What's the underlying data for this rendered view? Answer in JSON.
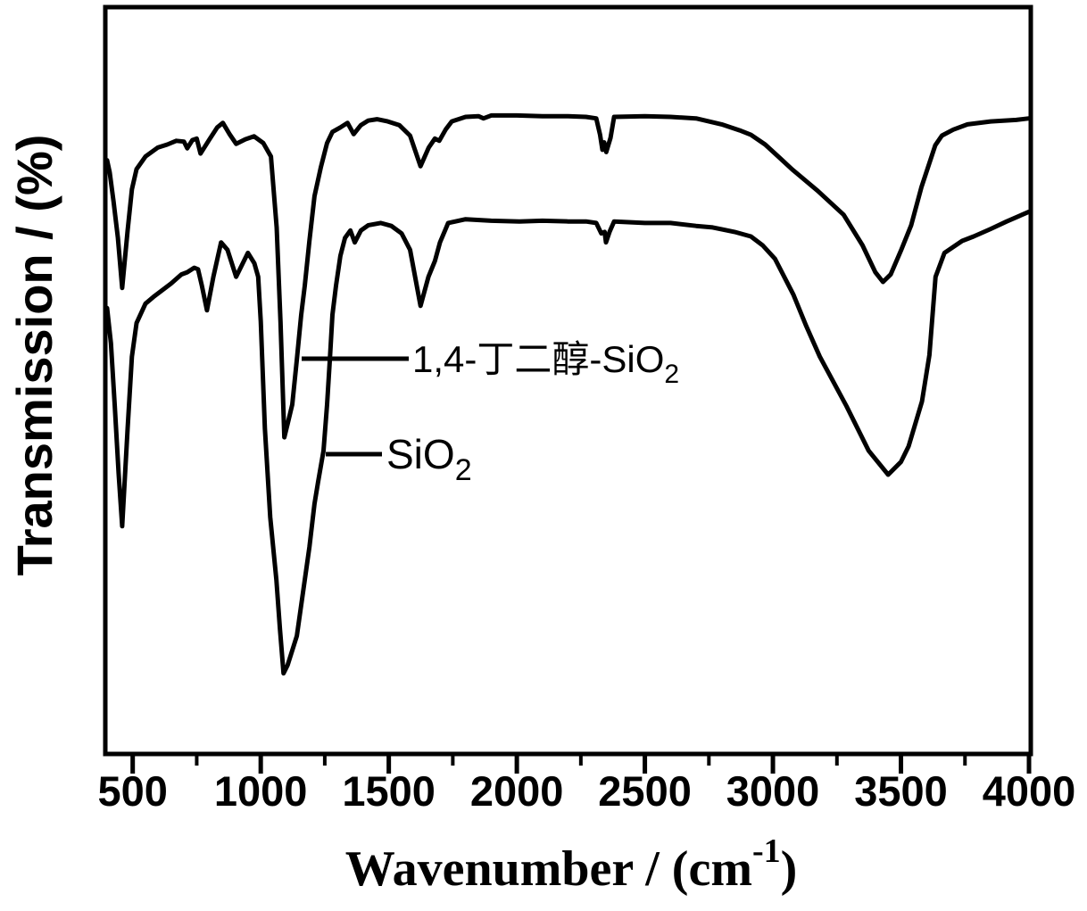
{
  "page": {
    "background": "#ffffff"
  },
  "figure": {
    "ink_color": "#000000",
    "frame_box": true
  },
  "chart_data": {
    "type": "line",
    "title": "",
    "xlabel": {
      "prefix": "Wavenumber / (cm",
      "superscript": "-1",
      "suffix": ")"
    },
    "xlabel_plain": "Wavenumber / (cm-1)",
    "ylabel": "Transmission / (%)",
    "x_axis": {
      "min": 400,
      "max": 4000,
      "major_ticks": [
        500,
        1000,
        1500,
        2000,
        2500,
        3000,
        3500,
        4000
      ],
      "major_tick_labels": [
        "500",
        "1000",
        "1500",
        "2000",
        "2500",
        "3000",
        "3500",
        "4000"
      ],
      "minor_ticks": [
        750,
        1250,
        1750,
        2250,
        2750,
        3250,
        3750
      ]
    },
    "y_axis": {
      "label": "Transmission / (%)",
      "numeric_ticks_shown": false,
      "range_arbitrary_units": [
        0,
        100
      ]
    },
    "grid": false,
    "legend_style": "inline annotations with leader lines",
    "annotations": [
      {
        "full_text": "1,4-丁二醇-SiO2",
        "label_main": "1,4-丁二醇-SiO",
        "label_sub": "2",
        "target_series_index": 0
      },
      {
        "full_text": "SiO2",
        "label_main": "SiO",
        "label_sub": "2",
        "target_series_index": 1
      }
    ],
    "series": [
      {
        "name": "1,4-丁二醇-SiO2",
        "color": "#000000",
        "points": [
          [
            400,
            79.5
          ],
          [
            410,
            77.9
          ],
          [
            425,
            74.0
          ],
          [
            442,
            69.1
          ],
          [
            459,
            62.4
          ],
          [
            480,
            70.1
          ],
          [
            497,
            75.6
          ],
          [
            515,
            78.3
          ],
          [
            550,
            80.0
          ],
          [
            598,
            81.2
          ],
          [
            635,
            81.6
          ],
          [
            670,
            82.1
          ],
          [
            700,
            82.0
          ],
          [
            713,
            81.1
          ],
          [
            733,
            82.2
          ],
          [
            750,
            82.4
          ],
          [
            765,
            80.4
          ],
          [
            800,
            82.3
          ],
          [
            830,
            83.9
          ],
          [
            852,
            84.5
          ],
          [
            878,
            83.0
          ],
          [
            904,
            81.7
          ],
          [
            940,
            82.3
          ],
          [
            974,
            82.7
          ],
          [
            1010,
            81.8
          ],
          [
            1040,
            80.0
          ],
          [
            1062,
            70.5
          ],
          [
            1077,
            57.9
          ],
          [
            1092,
            42.4
          ],
          [
            1105,
            44.2
          ],
          [
            1123,
            46.8
          ],
          [
            1141,
            52.8
          ],
          [
            1158,
            58.8
          ],
          [
            1172,
            62.7
          ],
          [
            1190,
            68.7
          ],
          [
            1210,
            74.7
          ],
          [
            1235,
            78.6
          ],
          [
            1259,
            81.8
          ],
          [
            1280,
            83.3
          ],
          [
            1311,
            83.9
          ],
          [
            1339,
            84.5
          ],
          [
            1363,
            83.0
          ],
          [
            1391,
            84.2
          ],
          [
            1419,
            84.8
          ],
          [
            1454,
            85.0
          ],
          [
            1496,
            84.7
          ],
          [
            1541,
            84.2
          ],
          [
            1583,
            82.8
          ],
          [
            1624,
            78.7
          ],
          [
            1656,
            81.2
          ],
          [
            1680,
            82.4
          ],
          [
            1697,
            82.1
          ],
          [
            1722,
            83.6
          ],
          [
            1746,
            84.7
          ],
          [
            1800,
            85.3
          ],
          [
            1850,
            85.4
          ],
          [
            1870,
            85.1
          ],
          [
            1900,
            85.5
          ],
          [
            2000,
            85.5
          ],
          [
            2100,
            85.4
          ],
          [
            2200,
            85.4
          ],
          [
            2270,
            85.3
          ],
          [
            2310,
            85.1
          ],
          [
            2325,
            82.9
          ],
          [
            2334,
            80.9
          ],
          [
            2341,
            81.9
          ],
          [
            2349,
            80.6
          ],
          [
            2366,
            82.5
          ],
          [
            2380,
            85.3
          ],
          [
            2500,
            85.4
          ],
          [
            2600,
            85.3
          ],
          [
            2700,
            85.1
          ],
          [
            2800,
            84.3
          ],
          [
            2870,
            83.5
          ],
          [
            2914,
            82.9
          ],
          [
            2970,
            81.6
          ],
          [
            3030,
            79.7
          ],
          [
            3074,
            78.3
          ],
          [
            3175,
            75.4
          ],
          [
            3276,
            72.2
          ],
          [
            3350,
            68.1
          ],
          [
            3400,
            64.5
          ],
          [
            3430,
            63.2
          ],
          [
            3460,
            64.2
          ],
          [
            3500,
            67.4
          ],
          [
            3540,
            70.8
          ],
          [
            3580,
            75.9
          ],
          [
            3634,
            81.5
          ],
          [
            3660,
            82.8
          ],
          [
            3704,
            83.6
          ],
          [
            3760,
            84.3
          ],
          [
            3850,
            84.7
          ],
          [
            3950,
            84.9
          ],
          [
            4000,
            85.1
          ]
        ]
      },
      {
        "name": "SiO2",
        "color": "#000000",
        "points": [
          [
            400,
            59.7
          ],
          [
            415,
            55.0
          ],
          [
            430,
            46.6
          ],
          [
            445,
            37.6
          ],
          [
            459,
            30.5
          ],
          [
            480,
            43.6
          ],
          [
            497,
            53.2
          ],
          [
            515,
            57.7
          ],
          [
            550,
            60.3
          ],
          [
            581,
            61.2
          ],
          [
            650,
            63.0
          ],
          [
            690,
            64.2
          ],
          [
            713,
            64.5
          ],
          [
            740,
            65.1
          ],
          [
            755,
            64.9
          ],
          [
            770,
            62.7
          ],
          [
            790,
            59.4
          ],
          [
            815,
            63.9
          ],
          [
            845,
            68.5
          ],
          [
            870,
            67.5
          ],
          [
            904,
            63.9
          ],
          [
            950,
            67.1
          ],
          [
            975,
            65.7
          ],
          [
            990,
            63.9
          ],
          [
            1000,
            57.9
          ],
          [
            1016,
            43.6
          ],
          [
            1037,
            31.7
          ],
          [
            1061,
            23.3
          ],
          [
            1075,
            16.7
          ],
          [
            1089,
            10.8
          ],
          [
            1105,
            11.9
          ],
          [
            1141,
            15.8
          ],
          [
            1190,
            27.7
          ],
          [
            1210,
            33.5
          ],
          [
            1224,
            36.4
          ],
          [
            1245,
            40.6
          ],
          [
            1259,
            46.8
          ],
          [
            1270,
            52.8
          ],
          [
            1280,
            58.8
          ],
          [
            1294,
            62.7
          ],
          [
            1311,
            66.7
          ],
          [
            1329,
            69.1
          ],
          [
            1350,
            70.1
          ],
          [
            1367,
            68.5
          ],
          [
            1391,
            70.1
          ],
          [
            1420,
            70.8
          ],
          [
            1468,
            71.1
          ],
          [
            1510,
            70.7
          ],
          [
            1550,
            69.7
          ],
          [
            1583,
            67.5
          ],
          [
            1624,
            60.0
          ],
          [
            1655,
            63.9
          ],
          [
            1680,
            66.0
          ],
          [
            1700,
            68.5
          ],
          [
            1732,
            71.1
          ],
          [
            1800,
            71.6
          ],
          [
            1900,
            71.4
          ],
          [
            2010,
            71.3
          ],
          [
            2100,
            71.4
          ],
          [
            2200,
            71.3
          ],
          [
            2270,
            71.3
          ],
          [
            2310,
            71.1
          ],
          [
            2330,
            69.7
          ],
          [
            2343,
            69.9
          ],
          [
            2348,
            68.5
          ],
          [
            2362,
            69.9
          ],
          [
            2380,
            71.3
          ],
          [
            2500,
            71.1
          ],
          [
            2600,
            71.1
          ],
          [
            2700,
            70.7
          ],
          [
            2765,
            70.5
          ],
          [
            2850,
            69.9
          ],
          [
            2914,
            69.3
          ],
          [
            2960,
            68.1
          ],
          [
            3008,
            66.3
          ],
          [
            3080,
            61.5
          ],
          [
            3130,
            57.3
          ],
          [
            3183,
            53.2
          ],
          [
            3287,
            46.6
          ],
          [
            3374,
            40.6
          ],
          [
            3450,
            37.4
          ],
          [
            3500,
            39.1
          ],
          [
            3530,
            41.2
          ],
          [
            3582,
            47.2
          ],
          [
            3611,
            53.4
          ],
          [
            3635,
            63.9
          ],
          [
            3670,
            67.1
          ],
          [
            3739,
            68.7
          ],
          [
            3784,
            69.3
          ],
          [
            3850,
            70.3
          ],
          [
            3913,
            71.3
          ],
          [
            4000,
            72.6
          ]
        ]
      }
    ]
  }
}
